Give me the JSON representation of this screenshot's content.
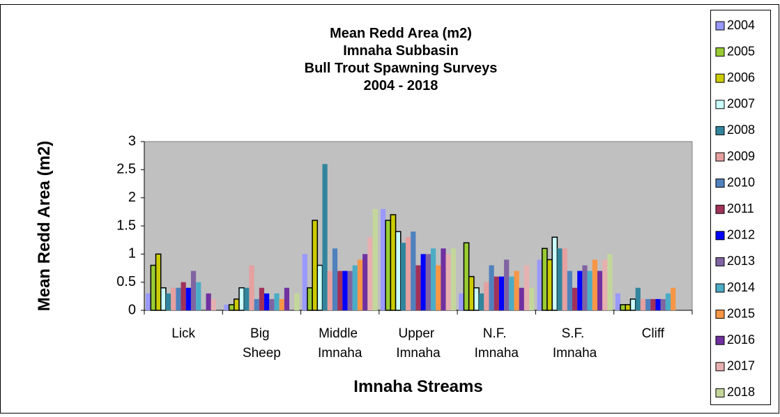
{
  "chart_data": {
    "type": "bar",
    "title": [
      "Mean Redd Area (m2)",
      "Imnaha Subbasin",
      "Bull Trout Spawning Surveys",
      "2004 - 2018"
    ],
    "y_label": "Mean Redd Area (m2)",
    "x_label": "Imnaha Streams",
    "categories": [
      "Lick",
      "Big Sheep",
      "Middle Imnaha",
      "Upper Imnaha",
      "N.F. Imnaha",
      "S.F. Imnaha",
      "Cliff"
    ],
    "ylim": [
      0,
      3
    ],
    "yticks": [
      0,
      0.5,
      1,
      1.5,
      2,
      2.5,
      3
    ],
    "grid": false,
    "legend": "right",
    "series": [
      {
        "name": "2004",
        "color": "#9999ff",
        "values": [
          0.3,
          0.1,
          1.0,
          1.8,
          0.3,
          0.9,
          0.3
        ]
      },
      {
        "name": "2005",
        "color": "#99cc33",
        "values": [
          0.8,
          0.1,
          0.4,
          1.6,
          1.2,
          1.1,
          0.1
        ]
      },
      {
        "name": "2006",
        "color": "#cccc00",
        "values": [
          1.0,
          0.2,
          1.6,
          1.7,
          0.6,
          0.9,
          0.1
        ]
      },
      {
        "name": "2007",
        "color": "#ccffff",
        "values": [
          0.4,
          0.4,
          0.8,
          1.4,
          0.4,
          1.3,
          0.2
        ]
      },
      {
        "name": "2008",
        "color": "#31859c",
        "values": [
          0.3,
          0.4,
          2.6,
          1.2,
          0.3,
          1.1,
          0.4
        ]
      },
      {
        "name": "2009",
        "color": "#e6a0a0",
        "values": [
          0.4,
          0.8,
          0.7,
          1.3,
          0.5,
          1.1,
          0.2
        ]
      },
      {
        "name": "2010",
        "color": "#4f81bd",
        "values": [
          0.4,
          0.2,
          1.1,
          1.4,
          0.8,
          0.7,
          0.2
        ]
      },
      {
        "name": "2011",
        "color": "#a0325a",
        "values": [
          0.5,
          0.4,
          0.7,
          0.8,
          0.6,
          0.4,
          0.2
        ]
      },
      {
        "name": "2012",
        "color": "#0000ff",
        "values": [
          0.4,
          0.3,
          0.7,
          1.0,
          0.6,
          0.7,
          0.2
        ]
      },
      {
        "name": "2013",
        "color": "#8064a2",
        "values": [
          0.7,
          0.2,
          0.7,
          1.0,
          0.9,
          0.8,
          0.2
        ]
      },
      {
        "name": "2014",
        "color": "#4bacc6",
        "values": [
          0.5,
          0.3,
          0.8,
          1.1,
          0.6,
          0.7,
          0.3
        ]
      },
      {
        "name": "2015",
        "color": "#f79646",
        "values": [
          null,
          0.2,
          0.9,
          0.8,
          0.7,
          0.9,
          0.4
        ]
      },
      {
        "name": "2016",
        "color": "#7030a0",
        "values": [
          0.3,
          0.4,
          1.0,
          1.1,
          0.4,
          0.7,
          null
        ]
      },
      {
        "name": "2017",
        "color": "#e6b0b0",
        "values": [
          0.2,
          null,
          1.3,
          1.0,
          0.8,
          0.9,
          null
        ]
      },
      {
        "name": "2018",
        "color": "#c4d79b",
        "values": [
          null,
          0.3,
          1.8,
          1.1,
          0.4,
          1.0,
          null
        ]
      }
    ]
  }
}
